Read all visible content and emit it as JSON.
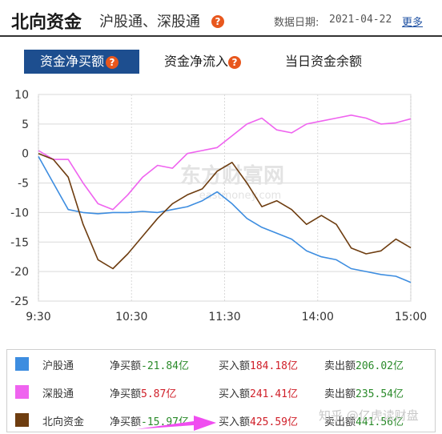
{
  "header": {
    "title": "北向资金",
    "subtitle": "沪股通、深股通",
    "help_glyph": "?",
    "date_label": "数据日期:",
    "date_value": "2021-04-22",
    "more": "更多"
  },
  "tabs": [
    {
      "label": "资金净买额",
      "active": true
    },
    {
      "label": "资金净流入",
      "active": false
    },
    {
      "label": "当日资金余额",
      "active": false
    }
  ],
  "chart_watermark": "东方财富网",
  "chart_watermark_sub": "eastmoney.com",
  "chart_data": {
    "type": "line",
    "x_ticks": [
      "9:30",
      "10:30",
      "11:30",
      "14:00",
      "15:00"
    ],
    "ylim": [
      -25,
      10
    ],
    "y_ticks": [
      10,
      5,
      0,
      -5,
      -10,
      -15,
      -20,
      -25
    ],
    "grid": true,
    "series": [
      {
        "name": "沪股通",
        "color": "#3d8de0",
        "x": [
          0,
          0.04,
          0.08,
          0.12,
          0.16,
          0.2,
          0.24,
          0.28,
          0.32,
          0.36,
          0.4,
          0.44,
          0.48,
          0.52,
          0.56,
          0.6,
          0.64,
          0.68,
          0.72,
          0.76,
          0.8,
          0.84,
          0.88,
          0.92,
          0.96,
          1
        ],
        "values": [
          -0.5,
          -5,
          -9.5,
          -10,
          -10.2,
          -10,
          -10,
          -9.8,
          -10,
          -9.5,
          -9,
          -8,
          -6.5,
          -8.5,
          -11,
          -12.5,
          -13.5,
          -14.5,
          -16.5,
          -17.5,
          -18,
          -19.5,
          -20,
          -20.5,
          -20.8,
          -21.84
        ]
      },
      {
        "name": "深股通",
        "color": "#ef63ef",
        "x": [
          0,
          0.04,
          0.08,
          0.12,
          0.16,
          0.2,
          0.24,
          0.28,
          0.32,
          0.36,
          0.4,
          0.44,
          0.48,
          0.52,
          0.56,
          0.6,
          0.64,
          0.68,
          0.72,
          0.76,
          0.8,
          0.84,
          0.88,
          0.92,
          0.96,
          1
        ],
        "values": [
          0.5,
          -1,
          -1,
          -5,
          -8.5,
          -9.5,
          -7,
          -4,
          -2,
          -2.5,
          0,
          0.5,
          1,
          3,
          5,
          6,
          4,
          3.5,
          5,
          5.5,
          6,
          6.5,
          6,
          5,
          5.2,
          5.87
        ]
      },
      {
        "name": "北向资金",
        "color": "#6e3d10",
        "x": [
          0,
          0.04,
          0.08,
          0.12,
          0.16,
          0.2,
          0.24,
          0.28,
          0.32,
          0.36,
          0.4,
          0.44,
          0.48,
          0.52,
          0.56,
          0.6,
          0.64,
          0.68,
          0.72,
          0.76,
          0.8,
          0.84,
          0.88,
          0.92,
          0.96,
          1
        ],
        "values": [
          0,
          -1,
          -4,
          -12,
          -18,
          -19.5,
          -17,
          -14,
          -11,
          -8.5,
          -7,
          -6,
          -3,
          -1.5,
          -5,
          -9,
          -8,
          -9.5,
          -12,
          -10.5,
          -12,
          -16,
          -17,
          -16.5,
          -14.5,
          -15.97
        ]
      }
    ]
  },
  "legend": [
    {
      "name": "沪股通",
      "color": "#3d8de0",
      "net_label": "净买额",
      "net_value": "-21.84亿",
      "net_sign": "neg",
      "buy_label": "买入额",
      "buy_value": "184.18亿",
      "sell_label": "卖出额",
      "sell_value": "206.02亿"
    },
    {
      "name": "深股通",
      "color": "#ef63ef",
      "net_label": "净买额",
      "net_value": "5.87亿",
      "net_sign": "pos",
      "buy_label": "买入额",
      "buy_value": "241.41亿",
      "sell_label": "卖出额",
      "sell_value": "235.54亿"
    },
    {
      "name": "北向资金",
      "color": "#6e3d10",
      "net_label": "净买额",
      "net_value": "-15.97亿",
      "net_sign": "neg",
      "buy_label": "买入额",
      "buy_value": "425.59亿",
      "sell_label": "卖出额",
      "sell_value": "441.56亿"
    }
  ],
  "watermark": "知乎 @亿虎读财盘"
}
